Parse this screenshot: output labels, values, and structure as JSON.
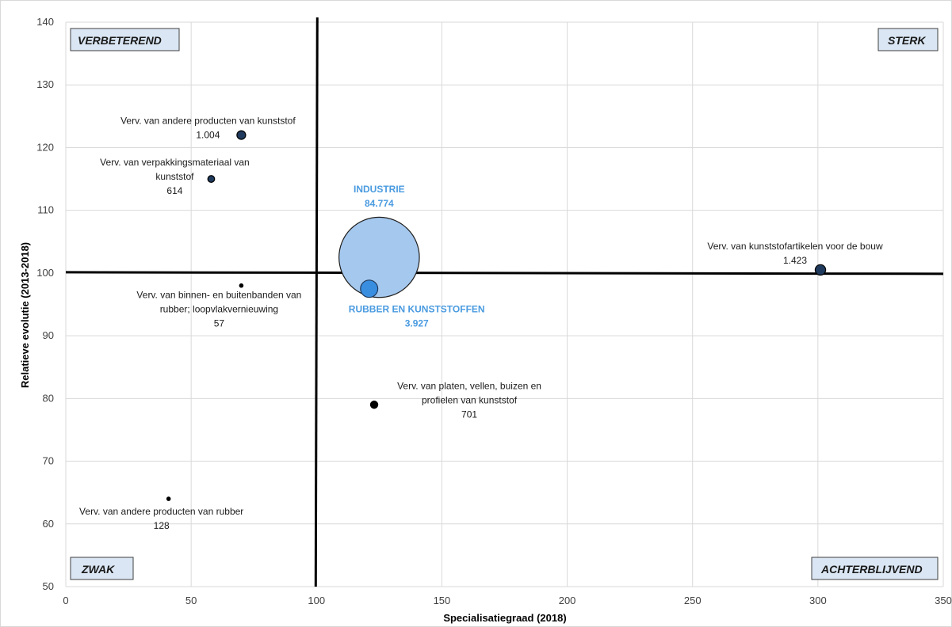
{
  "chart_data": {
    "type": "bubble",
    "xlabel": "Specialisatiegraad (2018)",
    "ylabel": "Relatieve evolutie (2013-2018)",
    "xlim": [
      0,
      350
    ],
    "ylim": [
      50,
      140
    ],
    "xticks": [
      "0",
      "50",
      "100",
      "150",
      "200",
      "250",
      "300",
      "350"
    ],
    "yticks": [
      "50",
      "60",
      "70",
      "80",
      "90",
      "100",
      "110",
      "120",
      "130",
      "140"
    ],
    "grid": true,
    "reference_lines": {
      "x": 100,
      "y": 100
    },
    "quadrants": {
      "top_left": "VERBETEREND",
      "top_right": "STERK",
      "bottom_left": "ZWAK",
      "bottom_right": "ACHTERBLIJVEND"
    },
    "points": [
      {
        "label_lines": [
          "INDUSTRIE",
          "84.774"
        ],
        "x": 125,
        "y": 102.5,
        "size": 84774,
        "highlight": true,
        "fill": "#a5c8ee",
        "stroke": "#1f1f1f",
        "text_color": "#4a9be0"
      },
      {
        "label_lines": [
          "RUBBER EN KUNSTSTOFFEN",
          "3.927"
        ],
        "x": 121,
        "y": 97.5,
        "size": 3927,
        "highlight": true,
        "fill": "#3a8ee0",
        "stroke": "#1f3a5c",
        "text_color": "#4a9be0"
      },
      {
        "label_lines": [
          "Verv. van andere producten van kunststof",
          "1.004"
        ],
        "x": 70,
        "y": 122,
        "size": 1004,
        "highlight": false,
        "fill": "#1f3a5c",
        "stroke": "#000000",
        "text_color": "#1a1a1a"
      },
      {
        "label_lines": [
          "Verv. van verpakkingsmateriaal van",
          "kunststof",
          "614"
        ],
        "x": 58,
        "y": 115,
        "size": 614,
        "highlight": false,
        "fill": "#1f3a5c",
        "stroke": "#000000",
        "text_color": "#1a1a1a"
      },
      {
        "label_lines": [
          "Verv. van binnen- en buitenbanden van",
          "rubber; loopvlakvernieuwing",
          "57"
        ],
        "x": 70,
        "y": 98,
        "size": 57,
        "highlight": false,
        "fill": "#000000",
        "stroke": "#000000",
        "text_color": "#1a1a1a"
      },
      {
        "label_lines": [
          "Verv. van platen, vellen, buizen en",
          "profielen van kunststof",
          "701"
        ],
        "x": 123,
        "y": 79,
        "size": 701,
        "highlight": false,
        "fill": "#000000",
        "stroke": "#000000",
        "text_color": "#1a1a1a"
      },
      {
        "label_lines": [
          "Verv. van kunststofartikelen voor de bouw",
          "1.423"
        ],
        "x": 301,
        "y": 100.5,
        "size": 1423,
        "highlight": false,
        "fill": "#1f3a5c",
        "stroke": "#000000",
        "text_color": "#1a1a1a"
      },
      {
        "label_lines": [
          "Verv. van andere producten van rubber",
          "128"
        ],
        "x": 41,
        "y": 64,
        "size": 128,
        "highlight": false,
        "fill": "#000000",
        "stroke": "#000000",
        "text_color": "#1a1a1a"
      }
    ]
  }
}
